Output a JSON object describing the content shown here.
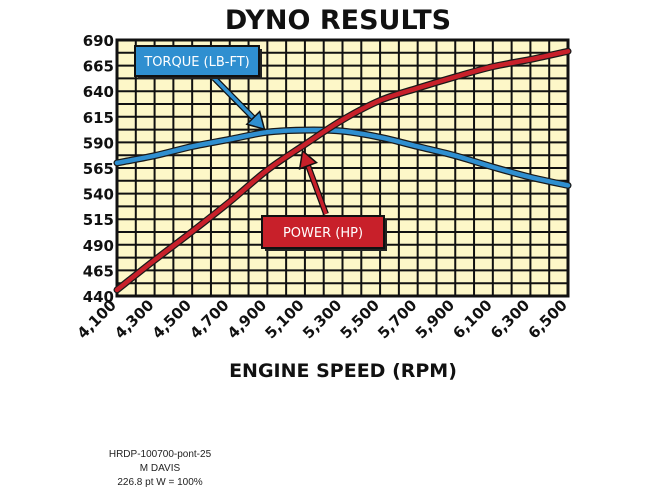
{
  "chart_data": {
    "type": "line",
    "title": "DYNO RESULTS",
    "xlabel": "ENGINE SPEED (RPM)",
    "ylabel": "",
    "x": [
      4100,
      4300,
      4500,
      4700,
      4900,
      5100,
      5300,
      5500,
      5700,
      5900,
      6100,
      6300,
      6500
    ],
    "xticks": [
      "4,100",
      "4,300",
      "4,500",
      "4,700",
      "4,900",
      "5,100",
      "5,300",
      "5,500",
      "5,700",
      "5,900",
      "6,100",
      "6,300",
      "6,500"
    ],
    "yticks": [
      "440",
      "465",
      "490",
      "515",
      "540",
      "565",
      "590",
      "615",
      "640",
      "665",
      "690"
    ],
    "xlim": [
      4100,
      6500
    ],
    "ylim": [
      440,
      690
    ],
    "grid": true,
    "series": [
      {
        "name": "TORQUE (LB-FT)",
        "color": "#2f8fd0",
        "values": [
          570,
          577,
          586,
          593,
          600,
          602,
          601,
          595,
          586,
          577,
          566,
          556,
          548
        ]
      },
      {
        "name": "POWER (HP)",
        "color": "#c8202a",
        "values": [
          446,
          475,
          503,
          532,
          563,
          588,
          612,
          631,
          643,
          654,
          664,
          671,
          679
        ]
      }
    ],
    "background_color": "#fdf7c8",
    "frame_color": "#111111"
  },
  "credits": {
    "line1": "HRDP-100700-pont-25",
    "line2": "M DAVIS",
    "line3": "226.8 pt W = 100%"
  }
}
